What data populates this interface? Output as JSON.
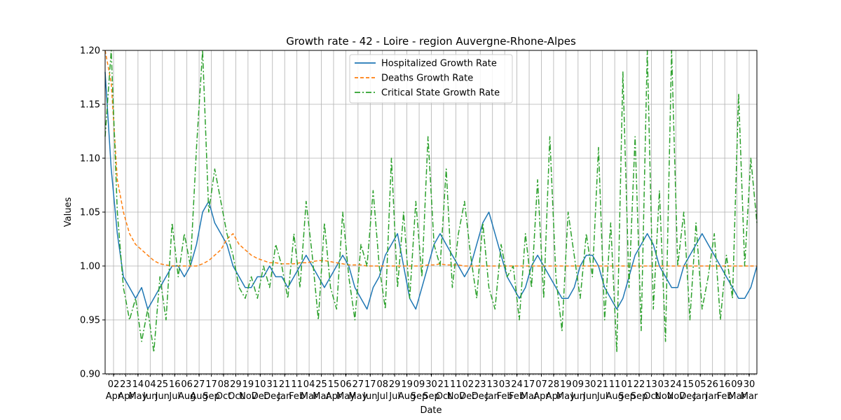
{
  "chart_data": {
    "type": "line",
    "title": "Growth rate - 42 - Loire - region Auvergne-Rhone-Alpes",
    "xlabel": "Date",
    "ylabel": "Values",
    "ylim": [
      0.9,
      1.2
    ],
    "yticks": [
      "0.90",
      "0.95",
      "1.00",
      "1.05",
      "1.10",
      "1.15",
      "1.20"
    ],
    "x_tick_labels": [
      [
        "02",
        "Apr"
      ],
      [
        "23",
        "Apr"
      ],
      [
        "14",
        "May"
      ],
      [
        "04",
        "Jun"
      ],
      [
        "25",
        "Jun"
      ],
      [
        "16",
        "Jul"
      ],
      [
        "06",
        "Aug"
      ],
      [
        "27",
        "Aug"
      ],
      [
        "17",
        "Sep"
      ],
      [
        "08",
        "Oct"
      ],
      [
        "29",
        "Oct"
      ],
      [
        "19",
        "Nov"
      ],
      [
        "10",
        "Dec"
      ],
      [
        "31",
        "Dec"
      ],
      [
        "21",
        "Jan"
      ],
      [
        "11",
        "Feb"
      ],
      [
        "04",
        "Mar"
      ],
      [
        "25",
        "Mar"
      ],
      [
        "15",
        "Apr"
      ],
      [
        "06",
        "May"
      ],
      [
        "27",
        "May"
      ],
      [
        "17",
        "Jun"
      ],
      [
        "08",
        "Jul"
      ],
      [
        "29",
        "Jul"
      ],
      [
        "19",
        "Aug"
      ],
      [
        "09",
        "Sep"
      ],
      [
        "30",
        "Sep"
      ],
      [
        "21",
        "Oct"
      ],
      [
        "11",
        "Nov"
      ],
      [
        "02",
        "Dec"
      ],
      [
        "23",
        "Dec"
      ],
      [
        "13",
        "Jan"
      ],
      [
        "03",
        "Feb"
      ],
      [
        "24",
        "Feb"
      ],
      [
        "17",
        "Mar"
      ],
      [
        "07",
        "Apr"
      ],
      [
        "28",
        "Apr"
      ],
      [
        "19",
        "May"
      ],
      [
        "09",
        "Jun"
      ],
      [
        "30",
        "Jun"
      ],
      [
        "21",
        "Jul"
      ],
      [
        "11",
        "Aug"
      ],
      [
        "01",
        "Sep"
      ],
      [
        "22",
        "Sep"
      ],
      [
        "13",
        "Oct"
      ],
      [
        "03",
        "Nov"
      ],
      [
        "24",
        "Nov"
      ],
      [
        "15",
        "Dec"
      ],
      [
        "05",
        "Jan"
      ],
      [
        "26",
        "Jan"
      ],
      [
        "16",
        "Feb"
      ],
      [
        "09",
        "Mar"
      ],
      [
        "30",
        "Mar"
      ]
    ],
    "grid": true,
    "legend_position": "upper-center",
    "series": [
      {
        "name": "Hospitalized Growth Rate",
        "color": "#1f77b4",
        "dash": "solid",
        "values": [
          1.18,
          1.09,
          1.03,
          0.99,
          0.98,
          0.97,
          0.98,
          0.96,
          0.97,
          0.98,
          0.99,
          1.0,
          1.0,
          0.99,
          1.0,
          1.02,
          1.05,
          1.06,
          1.04,
          1.03,
          1.02,
          1.0,
          0.99,
          0.98,
          0.98,
          0.99,
          0.99,
          1.0,
          0.99,
          0.99,
          0.98,
          0.99,
          1.0,
          1.01,
          1.0,
          0.99,
          0.98,
          0.99,
          1.0,
          1.01,
          1.0,
          0.98,
          0.97,
          0.96,
          0.98,
          0.99,
          1.01,
          1.02,
          1.03,
          1.0,
          0.97,
          0.96,
          0.98,
          1.0,
          1.02,
          1.03,
          1.02,
          1.01,
          1.0,
          0.99,
          1.0,
          1.02,
          1.04,
          1.05,
          1.03,
          1.01,
          0.99,
          0.98,
          0.97,
          0.98,
          1.0,
          1.01,
          1.0,
          0.99,
          0.98,
          0.97,
          0.97,
          0.98,
          1.0,
          1.01,
          1.01,
          1.0,
          0.98,
          0.97,
          0.96,
          0.97,
          0.99,
          1.01,
          1.02,
          1.03,
          1.02,
          1.0,
          0.99,
          0.98,
          0.98,
          1.0,
          1.01,
          1.02,
          1.03,
          1.02,
          1.01,
          1.0,
          0.99,
          0.98,
          0.97,
          0.97,
          0.98,
          1.0
        ]
      },
      {
        "name": "Deaths Growth Rate",
        "color": "#ff7f0e",
        "dash": "5,3",
        "values": [
          1.2,
          1.17,
          1.08,
          1.05,
          1.03,
          1.02,
          1.015,
          1.01,
          1.005,
          1.002,
          1.001,
          1.0,
          1.0,
          1.0,
          1.0,
          1.0,
          1.002,
          1.005,
          1.01,
          1.015,
          1.025,
          1.03,
          1.02,
          1.015,
          1.01,
          1.007,
          1.005,
          1.003,
          1.003,
          1.002,
          1.002,
          1.002,
          1.003,
          1.003,
          1.004,
          1.005,
          1.005,
          1.004,
          1.003,
          1.002,
          1.001,
          1.001,
          1.001,
          1.0,
          1.0,
          1.0,
          1.0,
          1.0,
          1.0,
          1.0,
          1.0,
          1.0,
          1.0,
          1.001,
          1.001,
          1.002,
          1.001,
          1.001,
          1.001,
          1.0,
          1.0,
          1.0,
          1.0,
          1.0,
          1.0,
          1.0,
          1.0,
          1.0,
          1.0,
          1.0,
          1.0,
          1.0,
          1.0,
          1.0,
          1.0,
          1.0,
          1.0,
          1.0,
          1.0,
          1.0,
          1.0,
          1.0,
          1.0,
          1.0,
          1.0,
          1.0,
          1.0,
          1.0,
          1.0,
          1.0,
          1.0,
          1.0,
          1.0,
          1.0,
          1.0,
          1.0,
          1.0,
          1.0,
          1.0,
          1.0,
          1.0,
          1.0,
          1.0,
          1.0,
          1.0,
          1.0,
          1.0,
          1.0
        ]
      },
      {
        "name": "Critical State Growth Rate",
        "color": "#2ca02c",
        "dash": "8,3,2,3",
        "values": [
          1.12,
          1.2,
          1.05,
          0.98,
          0.95,
          0.97,
          0.93,
          0.96,
          0.92,
          0.99,
          0.95,
          1.04,
          0.99,
          1.03,
          1.0,
          1.11,
          1.2,
          1.05,
          1.09,
          1.06,
          1.03,
          1.01,
          0.98,
          0.97,
          0.99,
          0.97,
          1.0,
          0.98,
          1.02,
          1.0,
          0.97,
          1.03,
          0.98,
          1.06,
          1.01,
          0.95,
          1.04,
          0.98,
          0.96,
          1.05,
          0.99,
          0.95,
          1.02,
          1.0,
          1.07,
          1.0,
          0.96,
          1.1,
          0.98,
          1.05,
          0.97,
          1.06,
          0.99,
          1.12,
          1.02,
          1.0,
          1.09,
          0.98,
          1.03,
          1.06,
          1.01,
          0.97,
          1.04,
          0.98,
          0.96,
          1.02,
          0.99,
          1.0,
          0.95,
          1.03,
          0.98,
          1.08,
          0.97,
          1.12,
          0.99,
          0.94,
          1.05,
          1.01,
          0.97,
          1.03,
          0.99,
          1.11,
          0.95,
          1.04,
          0.92,
          1.18,
          0.98,
          1.12,
          0.94,
          1.2,
          0.96,
          1.07,
          0.93,
          1.2,
          1.0,
          1.05,
          0.95,
          1.04,
          0.96,
          0.99,
          1.03,
          0.95,
          1.01,
          0.97,
          1.16,
          1.0,
          1.1,
          1.04
        ]
      }
    ]
  }
}
